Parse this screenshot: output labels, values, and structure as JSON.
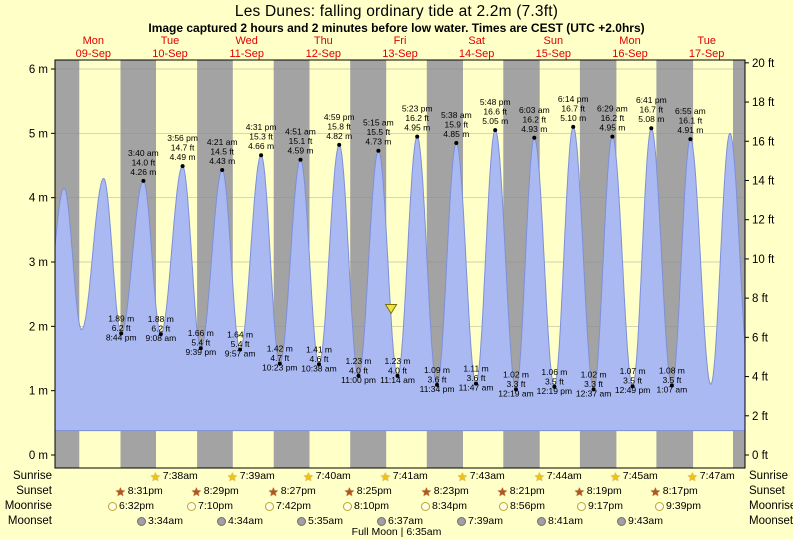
{
  "title": "Les Dunes: falling  ordinary tide at 2.2m (7.3ft)",
  "subtitle": "Image captured 2 hours and 2 minutes before low water. Times are CEST (UTC +2.0hrs)",
  "chart_data": {
    "type": "area",
    "title": "Les Dunes: falling ordinary tide at 2.2m (7.3ft)",
    "x_labels": [
      {
        "name": "Mon",
        "date": "09-Sep"
      },
      {
        "name": "Tue",
        "date": "10-Sep"
      },
      {
        "name": "Wed",
        "date": "11-Sep"
      },
      {
        "name": "Thu",
        "date": "12-Sep"
      },
      {
        "name": "Fri",
        "date": "13-Sep"
      },
      {
        "name": "Sat",
        "date": "14-Sep"
      },
      {
        "name": "Sun",
        "date": "15-Sep"
      },
      {
        "name": "Mon",
        "date": "16-Sep"
      },
      {
        "name": "Tue",
        "date": "17-Sep"
      }
    ],
    "y_axis_left": {
      "unit": "m",
      "ticks": [
        6,
        5,
        4,
        3,
        2,
        1,
        0
      ]
    },
    "y_axis_right": {
      "unit": "ft",
      "ticks": [
        20,
        18,
        16,
        14,
        12,
        10,
        8,
        6,
        4,
        2,
        0
      ]
    },
    "ylim_m": [
      0,
      6
    ],
    "ylim_ft": [
      0,
      20
    ],
    "extremes": [
      {
        "t": -3.6,
        "m": 1.9,
        "type": "low",
        "labeled": false
      },
      {
        "t": 2.83,
        "m": 4.15,
        "type": "high",
        "labeled": false
      },
      {
        "t": 8.33,
        "m": 1.95,
        "type": "low",
        "labeled": false
      },
      {
        "t": 15.25,
        "m": 4.3,
        "type": "high",
        "labeled": false
      },
      {
        "t": 20.73,
        "m": 1.89,
        "ft": 6.2,
        "time": "8:44 pm",
        "type": "low",
        "labeled": true
      },
      {
        "t": 27.67,
        "m": 4.26,
        "ft": 14.0,
        "time": "3:40 am",
        "type": "high",
        "labeled": true
      },
      {
        "t": 33.13,
        "m": 1.88,
        "ft": 6.2,
        "time": "9:08 am",
        "type": "low",
        "labeled": true
      },
      {
        "t": 39.93,
        "m": 4.49,
        "ft": 14.7,
        "time": "3:56 pm",
        "type": "high",
        "labeled": true
      },
      {
        "t": 45.65,
        "m": 1.66,
        "ft": 5.4,
        "time": "9:39 pm",
        "type": "low",
        "labeled": true
      },
      {
        "t": 52.35,
        "m": 4.43,
        "ft": 14.5,
        "time": "4:21 am",
        "type": "high",
        "labeled": true
      },
      {
        "t": 57.95,
        "m": 1.64,
        "ft": 5.4,
        "time": "9:57 am",
        "type": "low",
        "labeled": true
      },
      {
        "t": 64.52,
        "m": 4.66,
        "ft": 15.3,
        "time": "4:31 pm",
        "type": "high",
        "labeled": true
      },
      {
        "t": 70.38,
        "m": 1.42,
        "ft": 4.7,
        "time": "10:23 pm",
        "type": "low",
        "labeled": true
      },
      {
        "t": 76.85,
        "m": 4.59,
        "ft": 15.1,
        "time": "4:51 am",
        "type": "high",
        "labeled": true
      },
      {
        "t": 82.63,
        "m": 1.41,
        "ft": 4.6,
        "time": "10:38 am",
        "type": "low",
        "labeled": true
      },
      {
        "t": 88.98,
        "m": 4.82,
        "ft": 15.8,
        "time": "4:59 pm",
        "type": "high",
        "labeled": true
      },
      {
        "t": 95.0,
        "m": 1.23,
        "ft": 4.0,
        "time": "11:00 pm",
        "type": "low",
        "labeled": true
      },
      {
        "t": 101.25,
        "m": 4.73,
        "ft": 15.5,
        "time": "5:15 am",
        "type": "high",
        "labeled": true
      },
      {
        "t": 107.23,
        "m": 1.23,
        "ft": 4.0,
        "time": "11:14 am",
        "type": "low",
        "labeled": true
      },
      {
        "t": 113.38,
        "m": 4.95,
        "ft": 16.2,
        "time": "5:23 pm",
        "type": "high",
        "labeled": true
      },
      {
        "t": 119.57,
        "m": 1.09,
        "ft": 3.6,
        "time": "11:34 pm",
        "type": "low",
        "labeled": true
      },
      {
        "t": 125.63,
        "m": 4.85,
        "ft": 15.9,
        "time": "5:38 am",
        "type": "high",
        "labeled": true
      },
      {
        "t": 131.78,
        "m": 1.11,
        "ft": 3.6,
        "time": "11:47 am",
        "type": "low",
        "labeled": true
      },
      {
        "t": 137.8,
        "m": 5.05,
        "ft": 16.6,
        "time": "5:48 pm",
        "type": "high",
        "labeled": true
      },
      {
        "t": 144.32,
        "m": 1.02,
        "ft": 3.3,
        "time": "12:19 am",
        "type": "low",
        "labeled": true
      },
      {
        "t": 150.05,
        "m": 4.93,
        "ft": 16.2,
        "time": "6:03 am",
        "type": "high",
        "labeled": true
      },
      {
        "t": 156.32,
        "m": 1.06,
        "ft": 3.5,
        "time": "12:19 pm",
        "type": "low",
        "labeled": true
      },
      {
        "t": 162.23,
        "m": 5.1,
        "ft": 16.7,
        "time": "6:14 pm",
        "type": "high",
        "labeled": true
      },
      {
        "t": 168.62,
        "m": 1.02,
        "ft": 3.3,
        "time": "12:37 am",
        "type": "low",
        "labeled": true
      },
      {
        "t": 174.48,
        "m": 4.95,
        "ft": 16.2,
        "time": "6:29 am",
        "type": "high",
        "labeled": true
      },
      {
        "t": 180.82,
        "m": 1.07,
        "ft": 3.5,
        "time": "12:49 pm",
        "type": "low",
        "labeled": true
      },
      {
        "t": 186.68,
        "m": 5.08,
        "ft": 16.7,
        "time": "6:41 pm",
        "type": "high",
        "labeled": true
      },
      {
        "t": 193.12,
        "m": 1.08,
        "ft": 3.5,
        "time": "1:07 am",
        "type": "low",
        "labeled": true
      },
      {
        "t": 198.92,
        "m": 4.91,
        "ft": 16.1,
        "time": "6:55 am",
        "type": "high",
        "labeled": true
      },
      {
        "t": 205.3,
        "m": 1.1,
        "type": "low",
        "labeled": false
      },
      {
        "t": 211.3,
        "m": 5.0,
        "type": "high",
        "labeled": false
      },
      {
        "t": 217.6,
        "m": 1.1,
        "type": "low",
        "labeled": false
      }
    ],
    "current_marker": {
      "t_hours": 105.2,
      "level_m": 2.2
    },
    "night_bands_hours": [
      [
        0,
        7.6
      ],
      [
        20.52,
        31.63
      ],
      [
        44.48,
        55.65
      ],
      [
        68.45,
        79.67
      ],
      [
        92.42,
        103.68
      ],
      [
        116.38,
        127.72
      ],
      [
        140.35,
        151.73
      ],
      [
        164.32,
        175.75
      ],
      [
        188.28,
        199.78
      ],
      [
        212.25,
        216
      ]
    ],
    "colors": {
      "day_bg": "#ffffc8",
      "night_band": "#a3a3a3",
      "tide_fill": "#aab9f2",
      "tide_stroke": "#7d90d8",
      "day_label": "#e00000",
      "marker_fill": "#efe33d",
      "marker_stroke": "#7a7000",
      "grid": "#8c8c8c"
    }
  },
  "astro": {
    "rows": [
      {
        "id": "sunrise",
        "label": "Sunrise",
        "icon": "sunrise-icon",
        "events": [
          {
            "day": 1,
            "time": "7:38am"
          },
          {
            "day": 2,
            "time": "7:39am"
          },
          {
            "day": 3,
            "time": "7:40am"
          },
          {
            "day": 4,
            "time": "7:41am"
          },
          {
            "day": 5,
            "time": "7:43am"
          },
          {
            "day": 6,
            "time": "7:44am"
          },
          {
            "day": 7,
            "time": "7:45am"
          },
          {
            "day": 8,
            "time": "7:47am"
          }
        ]
      },
      {
        "id": "sunset",
        "label": "Sunset",
        "icon": "sunset-icon",
        "events": [
          {
            "day": 0,
            "time": "8:31pm"
          },
          {
            "day": 1,
            "time": "8:29pm"
          },
          {
            "day": 2,
            "time": "8:27pm"
          },
          {
            "day": 3,
            "time": "8:25pm"
          },
          {
            "day": 4,
            "time": "8:23pm"
          },
          {
            "day": 5,
            "time": "8:21pm"
          },
          {
            "day": 6,
            "time": "8:19pm"
          },
          {
            "day": 7,
            "time": "8:17pm"
          }
        ]
      },
      {
        "id": "moonrise",
        "label": "Moonrise",
        "icon": "moonrise-icon",
        "events": [
          {
            "day": 0,
            "time": "6:32pm"
          },
          {
            "day": 1,
            "time": "7:10pm"
          },
          {
            "day": 2,
            "time": "7:42pm"
          },
          {
            "day": 3,
            "time": "8:10pm"
          },
          {
            "day": 4,
            "time": "8:34pm"
          },
          {
            "day": 5,
            "time": "8:56pm"
          },
          {
            "day": 6,
            "time": "9:17pm"
          },
          {
            "day": 7,
            "time": "9:39pm"
          }
        ]
      },
      {
        "id": "moonset",
        "label": "Moonset",
        "icon": "moonset-icon",
        "events": [
          {
            "day": 1,
            "time": "3:34am"
          },
          {
            "day": 2,
            "time": "4:34am"
          },
          {
            "day": 3,
            "time": "5:35am"
          },
          {
            "day": 4,
            "time": "6:37am"
          },
          {
            "day": 5,
            "time": "7:39am"
          },
          {
            "day": 6,
            "time": "8:41am"
          },
          {
            "day": 7,
            "time": "9:43am"
          }
        ]
      }
    ],
    "full_moon": "Full Moon | 6:35am"
  }
}
